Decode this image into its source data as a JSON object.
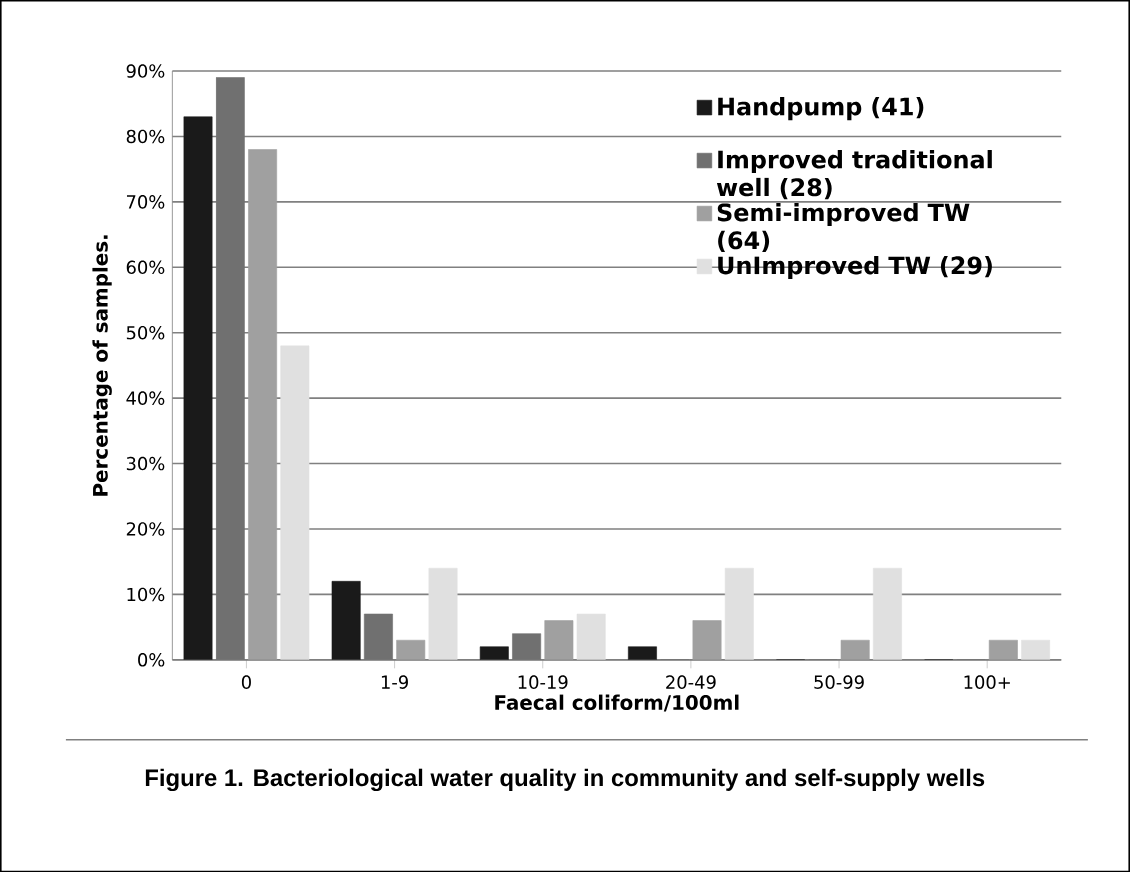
{
  "chart_data": {
    "type": "bar",
    "categories": [
      "0",
      "1-9",
      "10-19",
      "20-49",
      "50-99",
      "100+"
    ],
    "xlabel": "Faecal coliform/100ml",
    "ylabel": "Percentage of samples.",
    "series": [
      {
        "name": "Handpump (41)",
        "color": "#1a1a1a",
        "values": [
          83,
          12,
          2,
          2,
          0,
          0
        ]
      },
      {
        "name": "Improved traditional well (28)",
        "color": "#707070",
        "values": [
          89,
          7,
          4,
          0,
          0,
          0
        ]
      },
      {
        "name": "Semi-improved TW (64)",
        "color": "#a0a0a0",
        "values": [
          78,
          3,
          6,
          6,
          3,
          3
        ]
      },
      {
        "name": "UnImproved TW (29)",
        "color": "#e0e0e0",
        "values": [
          48,
          14,
          7,
          14,
          14,
          3
        ]
      }
    ],
    "ylim": [
      0,
      90
    ],
    "yticks": [
      {
        "value": 0,
        "label": "0%"
      },
      {
        "value": 10,
        "label": "10%"
      },
      {
        "value": 20,
        "label": "20%"
      },
      {
        "value": 30,
        "label": "30%"
      },
      {
        "value": 40,
        "label": "40%"
      },
      {
        "value": 50,
        "label": "50%"
      },
      {
        "value": 60,
        "label": "60%"
      },
      {
        "value": 70,
        "label": "70%"
      },
      {
        "value": 80,
        "label": "80%"
      },
      {
        "value": 90,
        "label": "90%"
      }
    ],
    "grid": "y",
    "legend": "top right",
    "annotations": [
      "Figure 1. Bacteriological water quality in community and self-supply wells"
    ]
  }
}
